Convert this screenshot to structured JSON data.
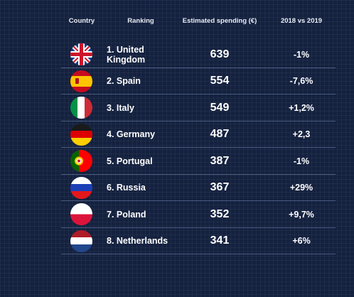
{
  "headers": {
    "country": "Country",
    "ranking": "Ranking",
    "spending": "Estimated spending (€)",
    "change": "2018 vs 2019"
  },
  "rows": [
    {
      "rank": "1. United Kingdom",
      "spending": "639",
      "change": "-1%",
      "flag": "uk-flag"
    },
    {
      "rank": "2. Spain",
      "spending": "554",
      "change": "-7,6%",
      "flag": "spain-flag"
    },
    {
      "rank": "3. Italy",
      "spending": "549",
      "change": "+1,2%",
      "flag": "italy-flag"
    },
    {
      "rank": "4. Germany",
      "spending": "487",
      "change": "+2,3",
      "flag": "germany-flag"
    },
    {
      "rank": "5. Portugal",
      "spending": "387",
      "change": "-1%",
      "flag": "portugal-flag"
    },
    {
      "rank": "6. Russia",
      "spending": "367",
      "change": "+29%",
      "flag": "russia-flag"
    },
    {
      "rank": "7. Poland",
      "spending": "352",
      "change": "+9,7%",
      "flag": "poland-flag"
    },
    {
      "rank": "8. Netherlands",
      "spending": "341",
      "change": "+6%",
      "flag": "netherlands-flag"
    }
  ],
  "colors": {
    "background": "#14213f",
    "text": "#ffffff",
    "divider": "#4a5c80"
  }
}
